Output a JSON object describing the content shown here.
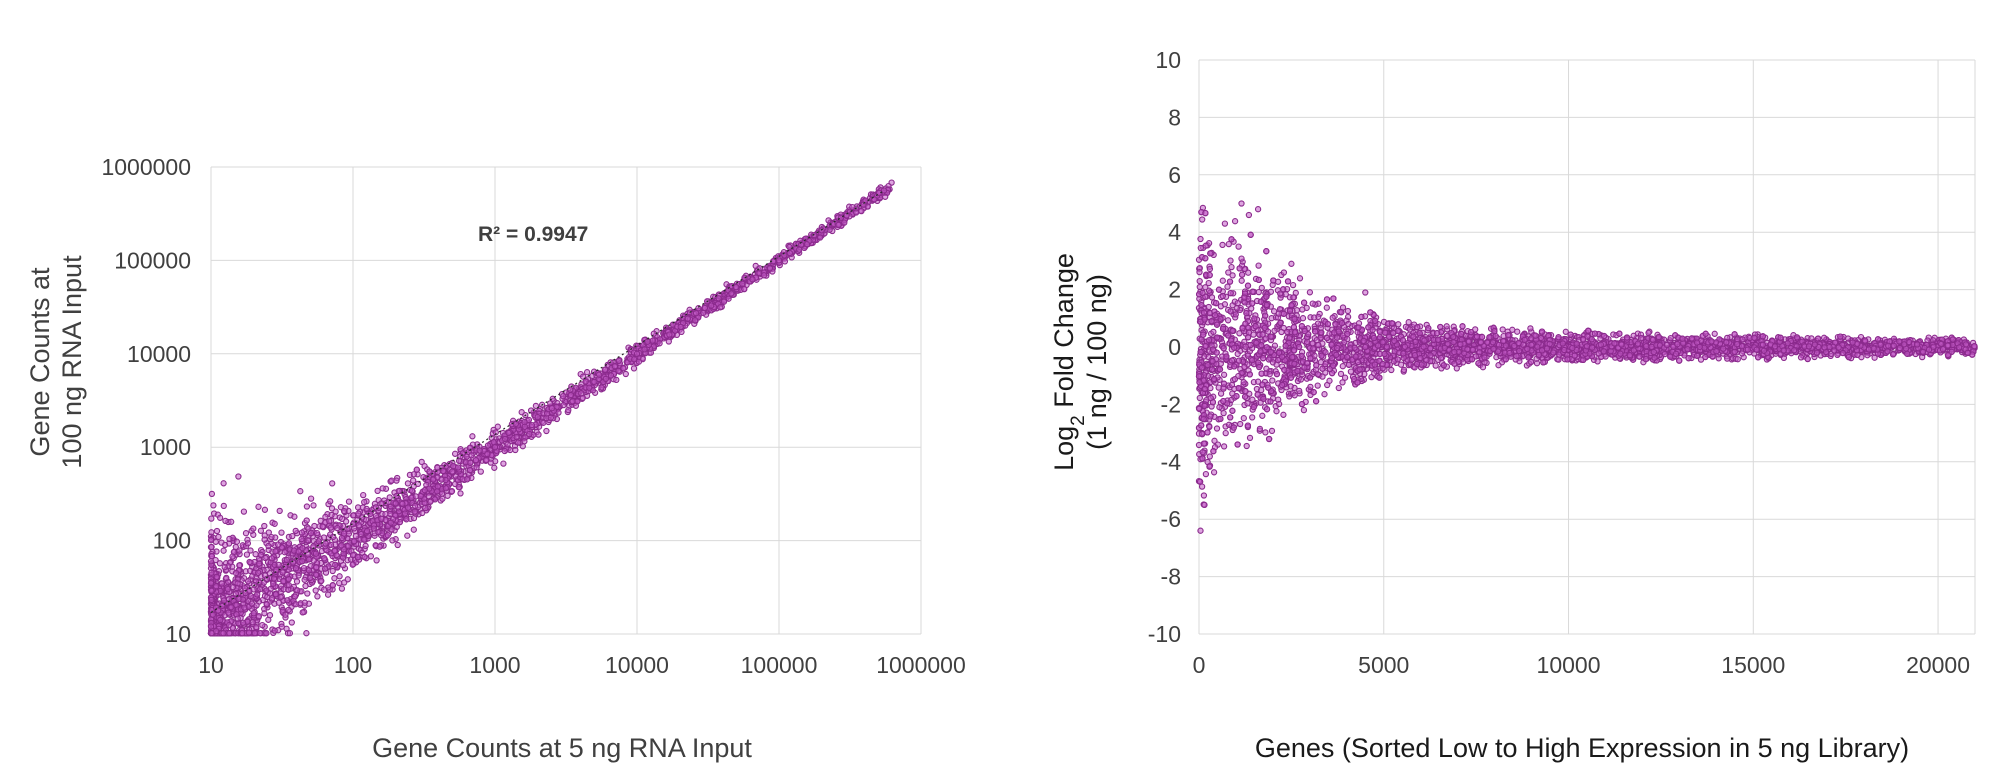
{
  "chart_data": [
    {
      "type": "scatter",
      "xlabel": "Gene Counts at 5 ng RNA Input",
      "ylabel_lines": [
        "Gene Counts at",
        "100 ng RNA Input"
      ],
      "x_scale": "log",
      "y_scale": "log",
      "xlim": [
        10,
        1000000
      ],
      "ylim": [
        10,
        1000000
      ],
      "x_ticks": [
        "10",
        "100",
        "1000",
        "10000",
        "100000",
        "1000000"
      ],
      "y_ticks": [
        "10",
        "100",
        "1000",
        "10000",
        "100000",
        "1000000"
      ],
      "grid": true,
      "annotation": "R² = 0.9947",
      "r_squared": 0.9947,
      "trendline": {
        "style": "dotted",
        "from": [
          10,
          17
        ],
        "to": [
          550000,
          560000
        ]
      },
      "point_color": "#c25bc6",
      "point_edge": "#8b2a8d",
      "series_description_points": [
        [
          10,
          12
        ],
        [
          10,
          35
        ],
        [
          10,
          60
        ],
        [
          12,
          20
        ],
        [
          15,
          45
        ],
        [
          20,
          30
        ],
        [
          30,
          55
        ],
        [
          50,
          40
        ],
        [
          70,
          90
        ],
        [
          100,
          70
        ],
        [
          100,
          150
        ],
        [
          200,
          250
        ],
        [
          300,
          300
        ],
        [
          500,
          550
        ],
        [
          1000,
          1000
        ],
        [
          2000,
          2100
        ],
        [
          5000,
          5000
        ],
        [
          10000,
          10000
        ],
        [
          30000,
          31000
        ],
        [
          100000,
          100000
        ],
        [
          200000,
          210000
        ],
        [
          550000,
          560000
        ],
        [
          560000,
          480000
        ]
      ]
    },
    {
      "type": "scatter",
      "xlabel": "Genes (Sorted Low to High Expression in 5 ng Library)",
      "ylabel_line1": "Log",
      "ylabel_sub": "2",
      "ylabel_line1_rest": " Fold Change",
      "ylabel_line2": "(1 ng / 100 ng)",
      "xlim": [
        0,
        21000
      ],
      "ylim": [
        -10,
        10
      ],
      "x_ticks": [
        "0",
        "5000",
        "10000",
        "15000",
        "20000"
      ],
      "y_ticks": [
        "10",
        "8",
        "6",
        "4",
        "2",
        "0",
        "-2",
        "-4",
        "-6",
        "-8",
        "-10"
      ],
      "grid": true,
      "point_color": "#c25bc6",
      "point_edge": "#8b2a8d",
      "spread_envelope": [
        [
          0,
          6.4
        ],
        [
          200,
          5.0
        ],
        [
          500,
          4.2
        ],
        [
          1000,
          4.5
        ],
        [
          1500,
          3.8
        ],
        [
          2500,
          2.7
        ],
        [
          4000,
          1.5
        ],
        [
          6000,
          0.8
        ],
        [
          10000,
          0.6
        ],
        [
          15000,
          0.45
        ],
        [
          20000,
          0.35
        ],
        [
          21000,
          0.3
        ]
      ]
    }
  ]
}
